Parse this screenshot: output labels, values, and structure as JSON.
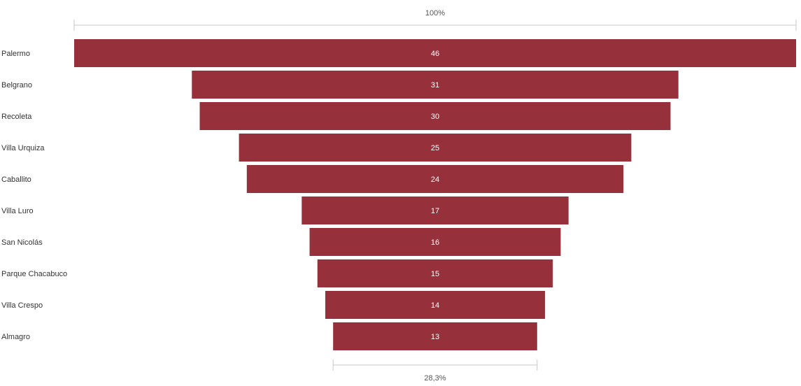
{
  "chart_data": {
    "type": "funnel",
    "title": "",
    "categories": [
      "Palermo",
      "Belgrano",
      "Recoleta",
      "Villa Urquiza",
      "Caballito",
      "Villa Luro",
      "San Nicolás",
      "Parque Chacabuco",
      "Villa Crespo",
      "Almagro"
    ],
    "values": [
      46,
      31,
      30,
      25,
      24,
      17,
      16,
      15,
      14,
      13
    ],
    "top_percent_label": "100%",
    "bottom_percent_label": "28,3%",
    "bar_color": "#96303B",
    "bracket_color": "#c8c8c8",
    "legend": "none",
    "grid": false
  }
}
